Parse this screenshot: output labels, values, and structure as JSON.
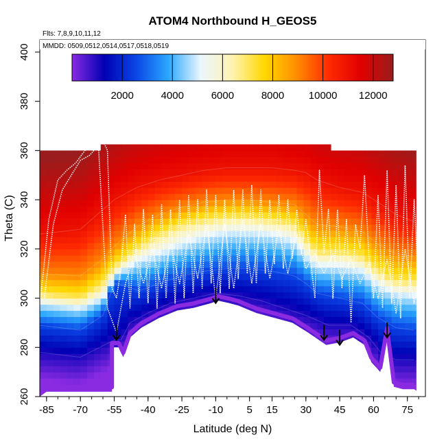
{
  "chart_data": {
    "type": "heatmap",
    "title": "ATOM4 Northbound H_GEOS5",
    "flights_note": "Flts: 7,8,9,10,11,12",
    "dates_note": "MMDD: 0509,0512,0514,0517,0518,0519",
    "xlabel": "Latitude (deg N)",
    "ylabel": "Theta (C)",
    "xlim": [
      -88,
      83
    ],
    "ylim": [
      260,
      405
    ],
    "x_ticks": [
      -85,
      -70,
      -55,
      -40,
      -25,
      -10,
      5,
      15,
      30,
      45,
      60,
      75
    ],
    "y_ticks": [
      260,
      280,
      300,
      320,
      340,
      360,
      380,
      400
    ],
    "colorbar": {
      "range": [
        0,
        12800
      ],
      "ticks": [
        2000,
        4000,
        6000,
        8000,
        10000,
        12000
      ],
      "colors": [
        "#8a2be2",
        "#0000b4",
        "#0a46e6",
        "#2aa8ff",
        "#eaf6ff",
        "#fff3b0",
        "#ffd700",
        "#ff8c00",
        "#ff2a00",
        "#e00000",
        "#9b1c1c"
      ]
    },
    "surface_boundary": [
      [
        -85,
        262
      ],
      [
        -56,
        262
      ],
      [
        -56,
        280
      ],
      [
        -53,
        280
      ],
      [
        -51,
        276
      ],
      [
        -48,
        284
      ],
      [
        -43,
        288
      ],
      [
        -35,
        292
      ],
      [
        -27,
        295
      ],
      [
        -20,
        296
      ],
      [
        -12,
        298
      ],
      [
        -9,
        299
      ],
      [
        -4,
        298
      ],
      [
        0,
        297
      ],
      [
        8,
        294
      ],
      [
        16,
        292
      ],
      [
        24,
        290
      ],
      [
        31,
        286
      ],
      [
        39,
        281
      ],
      [
        45,
        282
      ],
      [
        51,
        284
      ],
      [
        56,
        281
      ],
      [
        59,
        274
      ],
      [
        63,
        270
      ],
      [
        66,
        286
      ],
      [
        69,
        264
      ],
      [
        73,
        263
      ],
      [
        78,
        263
      ]
    ],
    "isolines": [
      {
        "h": 1000,
        "pts": [
          [
            -88,
            278
          ],
          [
            -70,
            276
          ],
          [
            -55,
            283
          ],
          [
            -52,
            283
          ],
          [
            -48,
            290
          ],
          [
            -40,
            294
          ],
          [
            -30,
            298
          ],
          [
            -20,
            300
          ],
          [
            -10,
            302
          ],
          [
            0,
            301
          ],
          [
            10,
            299
          ],
          [
            20,
            296
          ],
          [
            30,
            293
          ],
          [
            40,
            289
          ],
          [
            50,
            289
          ],
          [
            58,
            284
          ],
          [
            64,
            277
          ],
          [
            70,
            275
          ],
          [
            78,
            275
          ]
        ]
      },
      {
        "h": 2500,
        "pts": [
          [
            -88,
            289
          ],
          [
            -70,
            287
          ],
          [
            -60,
            293
          ],
          [
            -55,
            306
          ],
          [
            -50,
            305
          ],
          [
            -44,
            303
          ],
          [
            -35,
            306
          ],
          [
            -25,
            309
          ],
          [
            -15,
            311
          ],
          [
            -5,
            312
          ],
          [
            5,
            312
          ],
          [
            15,
            311
          ],
          [
            25,
            309
          ],
          [
            30,
            306
          ],
          [
            35,
            302
          ],
          [
            45,
            300
          ],
          [
            55,
            298
          ],
          [
            62,
            292
          ],
          [
            70,
            288
          ],
          [
            78,
            287
          ]
        ]
      },
      {
        "h": 5000,
        "pts": [
          [
            -88,
            298
          ],
          [
            -70,
            296
          ],
          [
            -60,
            300
          ],
          [
            -55,
            309
          ],
          [
            -50,
            312
          ],
          [
            -45,
            315
          ],
          [
            -35,
            318
          ],
          [
            -25,
            322
          ],
          [
            -15,
            325
          ],
          [
            -5,
            327
          ],
          [
            5,
            327
          ],
          [
            15,
            326
          ],
          [
            25,
            323
          ],
          [
            30,
            317
          ],
          [
            35,
            313
          ],
          [
            45,
            313
          ],
          [
            55,
            311
          ],
          [
            62,
            305
          ],
          [
            70,
            302
          ],
          [
            78,
            301
          ]
        ]
      },
      {
        "h": 7000,
        "pts": [
          [
            -88,
            302
          ],
          [
            -70,
            300
          ],
          [
            -60,
            306
          ],
          [
            -55,
            313
          ],
          [
            -45,
            320
          ],
          [
            -35,
            326
          ],
          [
            -25,
            330
          ],
          [
            -15,
            332
          ],
          [
            -5,
            333
          ],
          [
            5,
            333
          ],
          [
            15,
            332
          ],
          [
            25,
            330
          ],
          [
            30,
            324
          ],
          [
            35,
            319
          ],
          [
            45,
            319
          ],
          [
            55,
            317
          ],
          [
            62,
            311
          ],
          [
            70,
            307
          ],
          [
            78,
            307
          ]
        ]
      },
      {
        "h": 9000,
        "pts": [
          [
            -88,
            310
          ],
          [
            -70,
            309
          ],
          [
            -60,
            316
          ],
          [
            -55,
            321
          ],
          [
            -45,
            329
          ],
          [
            -35,
            334
          ],
          [
            -25,
            337
          ],
          [
            -15,
            339
          ],
          [
            -5,
            340
          ],
          [
            5,
            340
          ],
          [
            15,
            339
          ],
          [
            25,
            338
          ],
          [
            30,
            334
          ],
          [
            35,
            330
          ],
          [
            45,
            329
          ],
          [
            55,
            327
          ],
          [
            62,
            322
          ],
          [
            70,
            318
          ],
          [
            78,
            317
          ]
        ]
      },
      {
        "h": 11000,
        "pts": [
          [
            -88,
            326
          ],
          [
            -70,
            328
          ],
          [
            -60,
            336
          ],
          [
            -55,
            340
          ],
          [
            -45,
            345
          ],
          [
            -35,
            348
          ],
          [
            -25,
            350
          ],
          [
            -15,
            352
          ],
          [
            -5,
            353
          ],
          [
            5,
            353
          ],
          [
            15,
            353
          ],
          [
            25,
            352
          ],
          [
            30,
            351
          ],
          [
            35,
            348
          ],
          [
            45,
            345
          ],
          [
            55,
            343
          ],
          [
            62,
            339
          ],
          [
            70,
            334
          ],
          [
            78,
            331
          ]
        ]
      }
    ],
    "flight_tracks": [
      {
        "lat": [
          -88,
          -84,
          -80,
          -76,
          -72,
          -68,
          -64,
          -60,
          -58,
          -56,
          -54,
          -52,
          -50,
          -48,
          -46,
          -44,
          -42,
          -40,
          -38,
          -36,
          -34,
          -32,
          -30,
          -28,
          -26,
          -24,
          -22,
          -20,
          -18,
          -16,
          -14,
          -12,
          -10,
          -8,
          -6,
          -4,
          -2,
          0,
          2,
          4,
          6,
          8,
          10,
          12,
          14,
          16,
          18,
          20,
          22,
          24,
          26,
          28,
          30,
          32,
          34,
          36,
          38,
          40,
          42,
          44,
          46,
          48,
          50,
          52,
          54,
          56,
          58,
          60,
          62,
          64,
          66,
          68,
          70,
          72,
          74,
          76,
          78,
          80,
          82
        ],
        "theta": [
          297,
          332,
          348,
          352,
          355,
          360,
          363,
          364,
          360,
          304,
          300,
          312,
          334,
          296,
          330,
          300,
          336,
          298,
          334,
          296,
          338,
          300,
          336,
          298,
          340,
          300,
          342,
          302,
          340,
          304,
          344,
          306,
          342,
          302,
          340,
          304,
          344,
          308,
          344,
          310,
          346,
          306,
          344,
          310,
          340,
          314,
          342,
          312,
          340,
          316,
          336,
          318,
          332,
          316,
          300,
          352,
          318,
          336,
          300,
          336,
          304,
          332,
          290,
          330,
          320,
          350,
          316,
          300,
          342,
          296,
          352,
          298,
          346,
          292,
          354,
          300,
          340,
          304,
          340
        ]
      },
      {
        "lat": [
          -86,
          -82,
          -78,
          -74,
          -70,
          -66,
          -62,
          -58,
          -54,
          -50,
          -46,
          -42,
          -38,
          -34,
          -30,
          -26,
          -22,
          -18,
          -14,
          -10,
          -6,
          -2,
          2,
          6,
          10,
          14,
          18,
          22,
          26,
          30,
          34,
          38,
          42,
          46,
          50,
          54,
          58,
          62,
          66,
          70,
          74,
          78,
          82
        ],
        "theta": [
          300,
          330,
          344,
          350,
          356,
          358,
          362,
          296,
          286,
          306,
          318,
          306,
          320,
          304,
          322,
          306,
          326,
          308,
          330,
          300,
          330,
          304,
          332,
          306,
          330,
          308,
          328,
          310,
          326,
          312,
          318,
          310,
          318,
          308,
          316,
          306,
          314,
          300,
          316,
          294,
          320,
          298,
          318
        ]
      }
    ],
    "sonde_markers": [
      {
        "lat": -54,
        "theta": 283
      },
      {
        "lat": -10,
        "theta": 298
      },
      {
        "lat": 38,
        "theta": 283
      },
      {
        "lat": 45,
        "theta": 281
      },
      {
        "lat": 66,
        "theta": 284
      }
    ]
  }
}
